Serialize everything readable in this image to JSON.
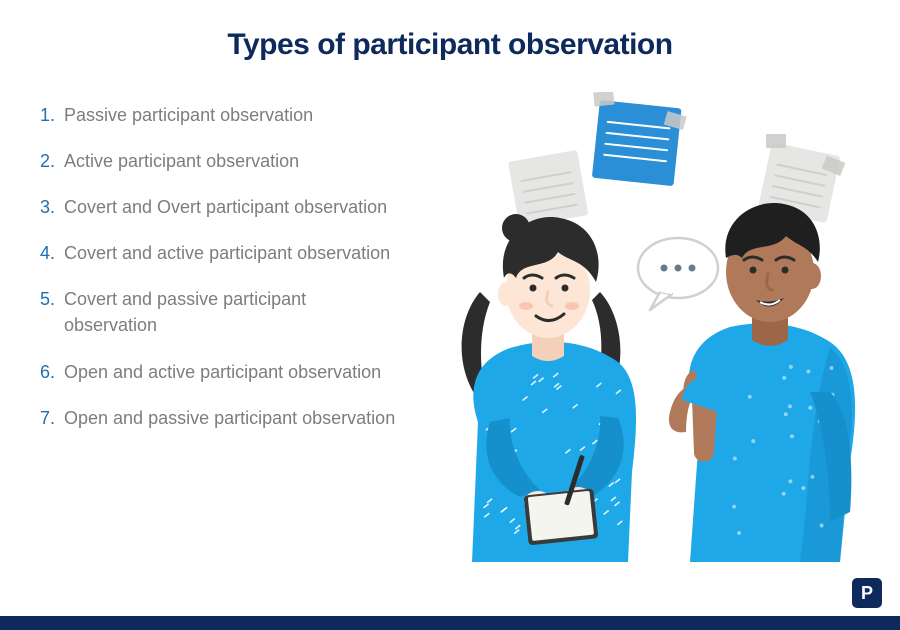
{
  "title": "Types of participant observation",
  "title_color": "#0e2a5c",
  "title_fontsize": 30,
  "list_number_color": "#1f6fb5",
  "list_text_color": "#7d7d7d",
  "list_fontsize": 18,
  "items": [
    {
      "n": "1.",
      "text": "Passive participant observation"
    },
    {
      "n": "2.",
      "text": "Active participant observation"
    },
    {
      "n": "3.",
      "text": "Covert and Overt participant observation"
    },
    {
      "n": "4.",
      "text": "Covert and active participant observation"
    },
    {
      "n": "5.",
      "text": "Covert and passive participant observation"
    },
    {
      "n": "6.",
      "text": "Open and active participant observation"
    },
    {
      "n": "7.",
      "text": "Open and passive participant observation"
    }
  ],
  "footer_bar_color": "#0e2a5c",
  "logo_bg": "#0e2a5c",
  "logo_text": "P",
  "illustration": {
    "type": "infographic",
    "background_color": "#ffffff",
    "shirt_blue": "#1ea8e8",
    "shirt_blue_dark": "#1690cc",
    "skin_light": "#fde6d6",
    "skin_light_shadow": "#f5d0b8",
    "skin_dark": "#b07a5a",
    "skin_dark_shadow": "#9c6648",
    "hair_black": "#2c2c2c",
    "hair_dark": "#1f1f1f",
    "pen_color": "#2c2c2c",
    "notepad_color": "#3a3a3a",
    "notepad_page": "#f5f5f0",
    "note_blue": "#2a8fd6",
    "note_grey": "#e6e6e4",
    "note_line": "#ffffff",
    "note_line_grey": "#cfcfcd",
    "tape_color": "#c9c9c7",
    "bubble_border": "#d0d0d0",
    "bubble_fill": "#ffffff",
    "bubble_dot": "#6b7a8a",
    "cheek_blush": "#f8b8a0",
    "outline": "#2c2c2c"
  }
}
